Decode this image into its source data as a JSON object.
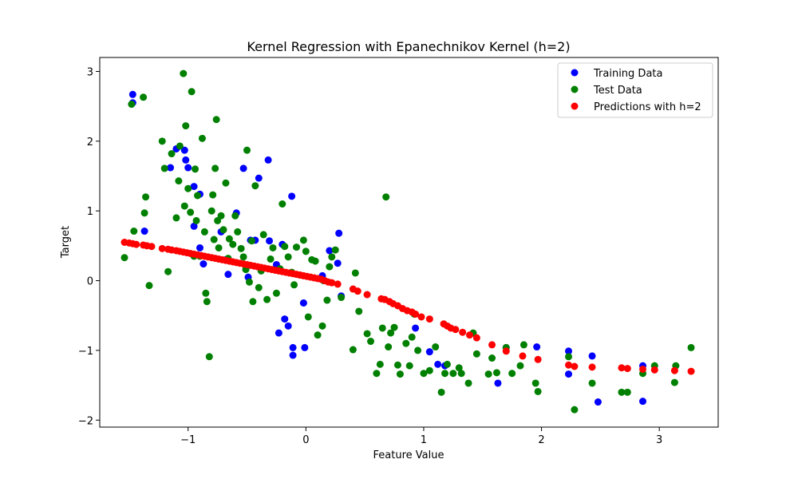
{
  "chart_data": {
    "type": "scatter",
    "title": "Kernel Regression with Epanechnikov Kernel (h=2)",
    "xlabel": "Feature Value",
    "ylabel": "Target",
    "xlim": [
      -1.75,
      3.5
    ],
    "ylim": [
      -2.1,
      3.2
    ],
    "xticks": [
      -1,
      0,
      1,
      2,
      3
    ],
    "yticks": [
      -2,
      -1,
      0,
      1,
      2,
      3
    ],
    "grid": false,
    "legend_position": "top-right",
    "series": [
      {
        "name": "Training Data",
        "color": "#0000ff",
        "x": [
          -1.47,
          -1.47,
          -1.37,
          -1.15,
          -1.1,
          -1.03,
          -1.02,
          -1.0,
          -0.95,
          -0.95,
          -0.9,
          -0.9,
          -0.87,
          -0.72,
          -0.68,
          -0.66,
          -0.59,
          -0.53,
          -0.49,
          -0.47,
          -0.43,
          -0.4,
          -0.32,
          -0.31,
          -0.25,
          -0.23,
          -0.2,
          -0.18,
          -0.15,
          -0.12,
          -0.11,
          -0.11,
          -0.01,
          -0.02,
          0.14,
          0.2,
          0.27,
          0.28,
          0.3,
          0.93,
          1.05,
          1.12,
          1.18,
          1.63,
          1.7,
          1.96,
          2.23,
          2.23,
          2.43,
          2.48,
          2.86,
          2.86
        ],
        "y": [
          2.67,
          2.55,
          0.71,
          1.62,
          1.89,
          1.87,
          1.73,
          1.62,
          0.78,
          1.35,
          1.24,
          0.47,
          0.24,
          0.7,
          0.3,
          0.09,
          0.97,
          1.61,
          0.05,
          0.58,
          0.58,
          1.47,
          1.73,
          0.57,
          0.23,
          -0.75,
          0.52,
          -0.55,
          -0.65,
          1.21,
          -0.96,
          -1.07,
          -0.96,
          -0.32,
          0.07,
          0.43,
          0.25,
          0.68,
          -0.22,
          -0.68,
          -1.02,
          -1.2,
          -1.22,
          -1.47,
          -0.96,
          -0.95,
          -1.01,
          -1.34,
          -1.08,
          -1.74,
          -1.22,
          -1.73
        ]
      },
      {
        "name": "Test Data",
        "color": "#008000",
        "x": [
          -1.54,
          -1.48,
          -1.46,
          -1.38,
          -1.37,
          -1.36,
          -1.33,
          -1.22,
          -1.2,
          -1.17,
          -1.14,
          -1.1,
          -1.08,
          -1.07,
          -1.04,
          -1.03,
          -1.02,
          -1.0,
          -0.98,
          -0.97,
          -0.95,
          -0.94,
          -0.93,
          -0.92,
          -0.9,
          -0.88,
          -0.86,
          -0.85,
          -0.84,
          -0.82,
          -0.8,
          -0.79,
          -0.78,
          -0.77,
          -0.76,
          -0.75,
          -0.74,
          -0.72,
          -0.7,
          -0.68,
          -0.66,
          -0.65,
          -0.62,
          -0.6,
          -0.58,
          -0.55,
          -0.53,
          -0.51,
          -0.5,
          -0.48,
          -0.46,
          -0.45,
          -0.43,
          -0.4,
          -0.38,
          -0.36,
          -0.33,
          -0.3,
          -0.28,
          -0.25,
          -0.22,
          -0.2,
          -0.18,
          -0.15,
          -0.12,
          -0.1,
          -0.08,
          -0.05,
          -0.02,
          0.0,
          0.02,
          0.05,
          0.08,
          0.1,
          0.14,
          0.15,
          0.18,
          0.2,
          0.22,
          0.25,
          0.3,
          0.4,
          0.42,
          0.45,
          0.52,
          0.55,
          0.6,
          0.63,
          0.65,
          0.68,
          0.7,
          0.72,
          0.75,
          0.78,
          0.8,
          0.85,
          0.88,
          0.9,
          0.92,
          0.95,
          1.0,
          1.05,
          1.1,
          1.15,
          1.18,
          1.2,
          1.25,
          1.3,
          1.32,
          1.38,
          1.42,
          1.45,
          1.55,
          1.58,
          1.62,
          1.7,
          1.75,
          1.82,
          1.85,
          1.95,
          1.97,
          2.23,
          2.28,
          2.43,
          2.68,
          2.73,
          2.86,
          2.96,
          3.13,
          3.14,
          3.27
        ],
        "y": [
          0.33,
          2.53,
          0.71,
          2.63,
          0.97,
          1.2,
          -0.07,
          2.0,
          1.61,
          0.13,
          1.82,
          0.9,
          1.43,
          1.93,
          2.97,
          1.07,
          2.22,
          1.32,
          0.98,
          2.71,
          0.35,
          1.6,
          0.86,
          1.22,
          0.35,
          2.04,
          0.7,
          -0.18,
          -0.3,
          -1.09,
          1.0,
          1.23,
          0.59,
          1.61,
          2.31,
          0.86,
          0.47,
          0.93,
          0.73,
          1.4,
          0.32,
          0.6,
          0.52,
          0.93,
          0.7,
          0.46,
          0.34,
          0.16,
          1.87,
          -0.02,
          0.57,
          -0.3,
          1.36,
          -0.1,
          0.14,
          0.66,
          -0.27,
          0.31,
          0.47,
          -0.18,
          0.17,
          1.1,
          0.49,
          0.34,
          0.12,
          -0.06,
          0.48,
          0.08,
          0.58,
          0.42,
          -0.52,
          0.3,
          0.28,
          -0.78,
          -0.65,
          0.0,
          -0.28,
          0.2,
          0.34,
          0.44,
          -0.24,
          -0.99,
          0.11,
          -0.44,
          -0.76,
          -0.87,
          -1.33,
          -1.2,
          -0.68,
          1.2,
          -0.95,
          -0.75,
          -0.67,
          -1.21,
          -1.34,
          -0.9,
          -1.22,
          -0.81,
          -0.48,
          -1.0,
          -1.33,
          -1.29,
          -0.95,
          -1.6,
          -1.33,
          -1.2,
          -1.33,
          -1.25,
          -1.33,
          -1.47,
          -0.75,
          -1.05,
          -1.34,
          -1.11,
          -1.32,
          -0.96,
          -1.33,
          -1.22,
          -0.92,
          -1.47,
          -1.59,
          -1.09,
          -1.85,
          -1.47,
          -1.6,
          -1.6,
          -1.33,
          -1.22,
          -1.46,
          -1.22,
          -0.96
        ]
      },
      {
        "name": "Predictions with h=2",
        "color": "#ff0000",
        "x": [
          -1.54,
          -1.5,
          -1.47,
          -1.44,
          -1.38,
          -1.35,
          -1.31,
          -1.22,
          -1.17,
          -1.14,
          -1.1,
          -1.07,
          -1.04,
          -1.01,
          -0.98,
          -0.95,
          -0.92,
          -0.89,
          -0.86,
          -0.83,
          -0.8,
          -0.77,
          -0.74,
          -0.71,
          -0.68,
          -0.65,
          -0.62,
          -0.59,
          -0.56,
          -0.53,
          -0.5,
          -0.47,
          -0.44,
          -0.41,
          -0.38,
          -0.35,
          -0.32,
          -0.29,
          -0.26,
          -0.23,
          -0.2,
          -0.17,
          -0.14,
          -0.11,
          -0.08,
          -0.05,
          -0.02,
          0.01,
          0.04,
          0.07,
          0.1,
          0.13,
          0.16,
          0.19,
          0.22,
          0.27,
          0.4,
          0.44,
          0.52,
          0.64,
          0.67,
          0.71,
          0.74,
          0.78,
          0.82,
          0.86,
          0.9,
          0.93,
          0.98,
          1.05,
          1.17,
          1.2,
          1.23,
          1.27,
          1.33,
          1.39,
          1.45,
          1.58,
          1.7,
          1.84,
          1.97,
          2.23,
          2.28,
          2.43,
          2.68,
          2.73,
          2.86,
          2.96,
          3.13,
          3.27
        ],
        "y": [
          0.55,
          0.54,
          0.53,
          0.52,
          0.51,
          0.5,
          0.49,
          0.46,
          0.45,
          0.44,
          0.43,
          0.42,
          0.41,
          0.4,
          0.39,
          0.38,
          0.37,
          0.36,
          0.35,
          0.34,
          0.33,
          0.32,
          0.31,
          0.3,
          0.29,
          0.28,
          0.27,
          0.26,
          0.25,
          0.24,
          0.23,
          0.22,
          0.21,
          0.2,
          0.19,
          0.18,
          0.17,
          0.16,
          0.15,
          0.14,
          0.13,
          0.12,
          0.11,
          0.1,
          0.09,
          0.08,
          0.07,
          0.06,
          0.05,
          0.04,
          0.03,
          0.02,
          0.0,
          -0.02,
          -0.03,
          -0.05,
          -0.12,
          -0.15,
          -0.2,
          -0.26,
          -0.27,
          -0.3,
          -0.33,
          -0.36,
          -0.4,
          -0.43,
          -0.45,
          -0.48,
          -0.52,
          -0.55,
          -0.62,
          -0.65,
          -0.68,
          -0.7,
          -0.74,
          -0.78,
          -0.82,
          -0.92,
          -1.01,
          -1.08,
          -1.13,
          -1.21,
          -1.23,
          -1.24,
          -1.25,
          -1.26,
          -1.27,
          -1.28,
          -1.29,
          -1.3
        ]
      }
    ]
  }
}
